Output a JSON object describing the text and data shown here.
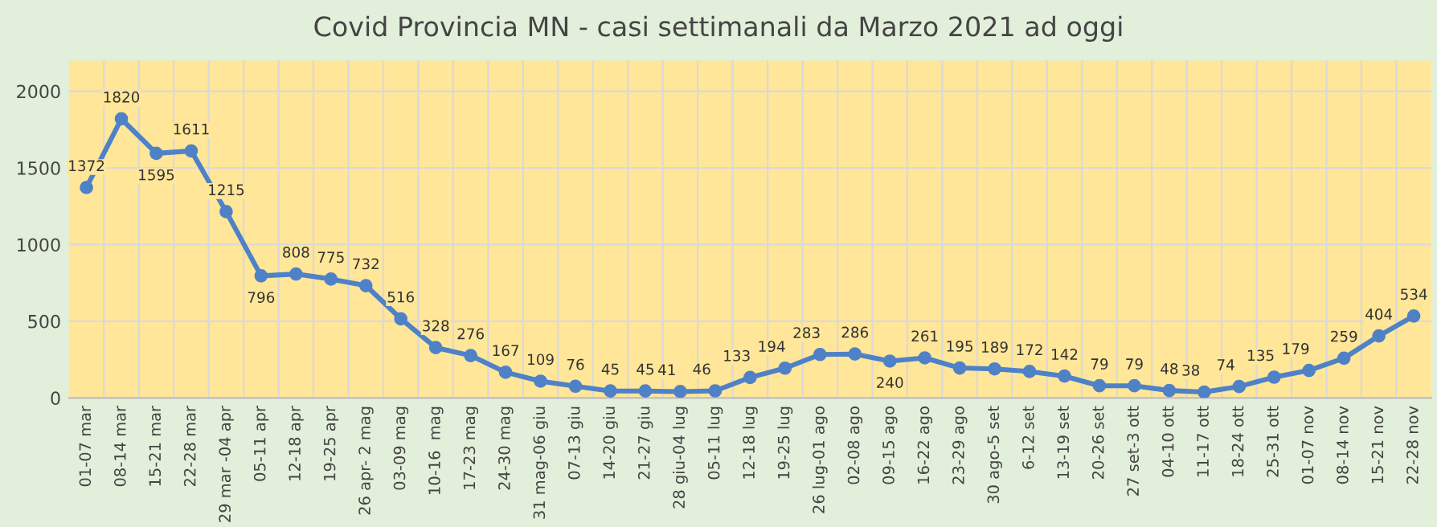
{
  "chart_data": {
    "type": "line",
    "title": "Covid Provincia MN - casi settimanali da Marzo 2021 ad oggi",
    "categories": [
      "01-07 mar",
      "08-14 mar",
      "15-21 mar",
      "22-28 mar",
      "29 mar -04 apr",
      "05-11 apr",
      "12-18 apr",
      "19-25 apr",
      "26 apr- 2 mag",
      "03-09 mag",
      "10-16  mag",
      "17-23 mag",
      "24-30 mag",
      "31 mag-06 giu",
      "07-13 giu",
      "14-20 giu",
      "21-27 giu",
      "28 giu-04 lug",
      "05-11 lug",
      "12-18 lug",
      "19-25 lug",
      "26 lug-01 ago",
      "02-08 ago",
      "09-15 ago",
      "16-22 ago",
      "23-29 ago",
      "30 ago-5 set",
      "6-12 set",
      "13-19 set",
      "20-26 set",
      "27 set-3 ott",
      "04-10 ott",
      "11-17 ott",
      "18-24 ott",
      "25-31 ott",
      "01-07 nov",
      "08-14 nov",
      "15-21 nov",
      "22-28 nov"
    ],
    "series": [
      {
        "color": "#4f81c7",
        "values": [
          1372,
          1820,
          1595,
          1611,
          1215,
          796,
          808,
          775,
          732,
          516,
          328,
          276,
          167,
          109,
          76,
          45,
          45,
          41,
          46,
          133,
          194,
          283,
          286,
          240,
          261,
          195,
          189,
          172,
          142,
          79,
          79,
          48,
          38,
          74,
          135,
          179,
          259,
          404,
          534
        ]
      }
    ],
    "ylim": [
      0,
      2200
    ],
    "yticks": [
      0,
      500,
      1000,
      1500,
      2000
    ],
    "grid": true,
    "marker": "circle",
    "line_style": "solid",
    "data_labels": true
  }
}
